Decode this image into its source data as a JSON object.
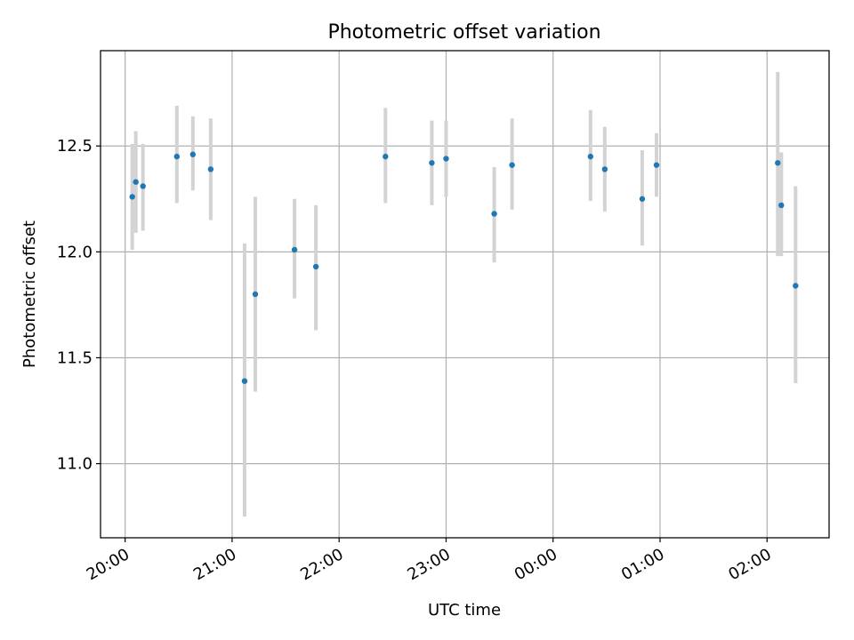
{
  "chart_data": {
    "type": "scatter",
    "title": "Photometric offset variation",
    "xlabel": "UTC time",
    "ylabel": "Photometric offset",
    "x_tick_labels": [
      "20:00",
      "21:00",
      "22:00",
      "23:00",
      "00:00",
      "01:00",
      "02:00"
    ],
    "y_tick_labels": [
      "11.0",
      "11.5",
      "12.0",
      "12.5"
    ],
    "y_ticks": [
      11.0,
      11.5,
      12.0,
      12.5
    ],
    "xlim_hours": [
      -0.23,
      6.58
    ],
    "ylim": [
      10.65,
      12.95
    ],
    "grid": true,
    "marker_color": "#1f77b4",
    "errorbar_color": "#d3d3d3",
    "points": [
      {
        "t": "20:04",
        "y": 12.26,
        "lo": 12.01,
        "hi": 12.51
      },
      {
        "t": "20:06",
        "y": 12.33,
        "lo": 12.09,
        "hi": 12.57
      },
      {
        "t": "20:10",
        "y": 12.31,
        "lo": 12.1,
        "hi": 12.51
      },
      {
        "t": "20:29",
        "y": 12.45,
        "lo": 12.23,
        "hi": 12.69
      },
      {
        "t": "20:38",
        "y": 12.46,
        "lo": 12.29,
        "hi": 12.64
      },
      {
        "t": "20:48",
        "y": 12.39,
        "lo": 12.15,
        "hi": 12.63
      },
      {
        "t": "21:07",
        "y": 11.39,
        "lo": 10.75,
        "hi": 12.04
      },
      {
        "t": "21:13",
        "y": 11.8,
        "lo": 11.34,
        "hi": 12.26
      },
      {
        "t": "21:35",
        "y": 12.01,
        "lo": 11.78,
        "hi": 12.25
      },
      {
        "t": "21:47",
        "y": 11.93,
        "lo": 11.63,
        "hi": 12.22
      },
      {
        "t": "22:26",
        "y": 12.45,
        "lo": 12.23,
        "hi": 12.68
      },
      {
        "t": "22:52",
        "y": 12.42,
        "lo": 12.22,
        "hi": 12.62
      },
      {
        "t": "23:00",
        "y": 12.44,
        "lo": 12.26,
        "hi": 12.62
      },
      {
        "t": "23:27",
        "y": 12.18,
        "lo": 11.95,
        "hi": 12.4
      },
      {
        "t": "23:37",
        "y": 12.41,
        "lo": 12.2,
        "hi": 12.63
      },
      {
        "t": "00:21",
        "y": 12.45,
        "lo": 12.24,
        "hi": 12.67
      },
      {
        "t": "00:29",
        "y": 12.39,
        "lo": 12.19,
        "hi": 12.59
      },
      {
        "t": "00:50",
        "y": 12.25,
        "lo": 12.03,
        "hi": 12.48
      },
      {
        "t": "00:58",
        "y": 12.41,
        "lo": 12.26,
        "hi": 12.56
      },
      {
        "t": "02:06",
        "y": 12.42,
        "lo": 11.98,
        "hi": 12.85
      },
      {
        "t": "02:08",
        "y": 12.22,
        "lo": 11.98,
        "hi": 12.47
      },
      {
        "t": "02:16",
        "y": 11.84,
        "lo": 11.38,
        "hi": 12.31
      }
    ]
  }
}
